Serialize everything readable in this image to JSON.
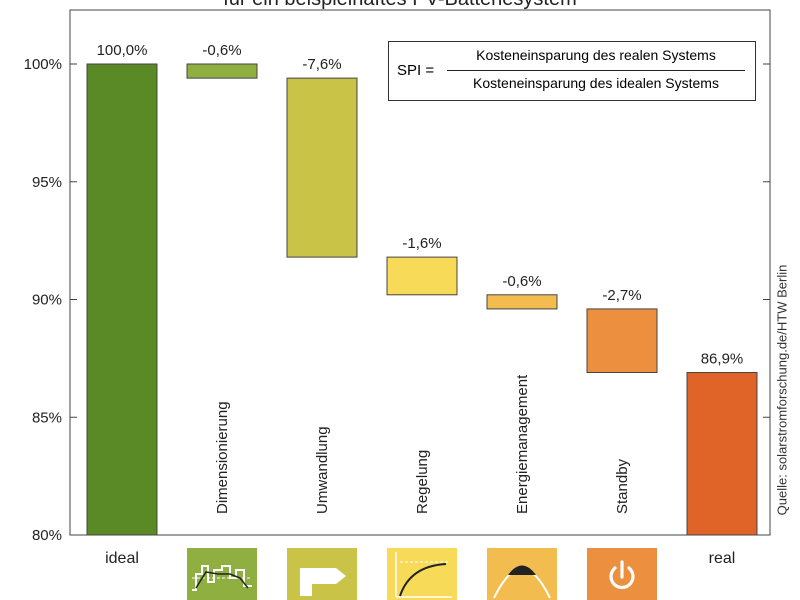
{
  "chart_data": {
    "type": "bar",
    "subtype": "waterfall",
    "title": "für ein beispielhaftes PV-Batteriesystem",
    "source": "Quelle: solarstromforschung.de/HTW Berlin",
    "formula": {
      "lhs": "SPI =",
      "numerator": "Kosteneinsparung des realen Systems",
      "denominator": "Kosteneinsparung des idealen Systems"
    },
    "ylim": [
      80,
      100
    ],
    "yticks": [
      "80%",
      "85%",
      "90%",
      "95%",
      "100%"
    ],
    "ytick_values": [
      80,
      85,
      90,
      95,
      100
    ],
    "bars": [
      {
        "label": "ideal",
        "start": 80,
        "end": 100,
        "value_label": "100,0%",
        "color": "#5a8a25",
        "label_mode": "bottom",
        "icon": ""
      },
      {
        "label": "Dimensionierung",
        "start": 100,
        "end": 99.4,
        "value_label": "-0,6%",
        "color": "#8fb040",
        "label_mode": "rotated",
        "icon": "sizing-profile-icon"
      },
      {
        "label": "Umwandlung",
        "start": 99.4,
        "end": 91.8,
        "value_label": "-7,6%",
        "color": "#c9c448",
        "label_mode": "rotated",
        "icon": "conversion-arrow-icon"
      },
      {
        "label": "Regelung",
        "start": 91.8,
        "end": 90.2,
        "value_label": "-1,6%",
        "color": "#f6da58",
        "label_mode": "rotated",
        "icon": "control-curve-icon"
      },
      {
        "label": "Energiemanagement",
        "start": 90.2,
        "end": 89.6,
        "value_label": "-0,6%",
        "color": "#f2bc4e",
        "label_mode": "rotated",
        "icon": "energy-management-curve-icon"
      },
      {
        "label": "Standby",
        "start": 89.6,
        "end": 86.9,
        "value_label": "-2,7%",
        "color": "#ec9040",
        "label_mode": "rotated",
        "icon": "power-standby-icon"
      },
      {
        "label": "real",
        "start": 80,
        "end": 86.9,
        "value_label": "86,9%",
        "color": "#e06428",
        "label_mode": "bottom",
        "icon": ""
      }
    ],
    "grid": false
  }
}
